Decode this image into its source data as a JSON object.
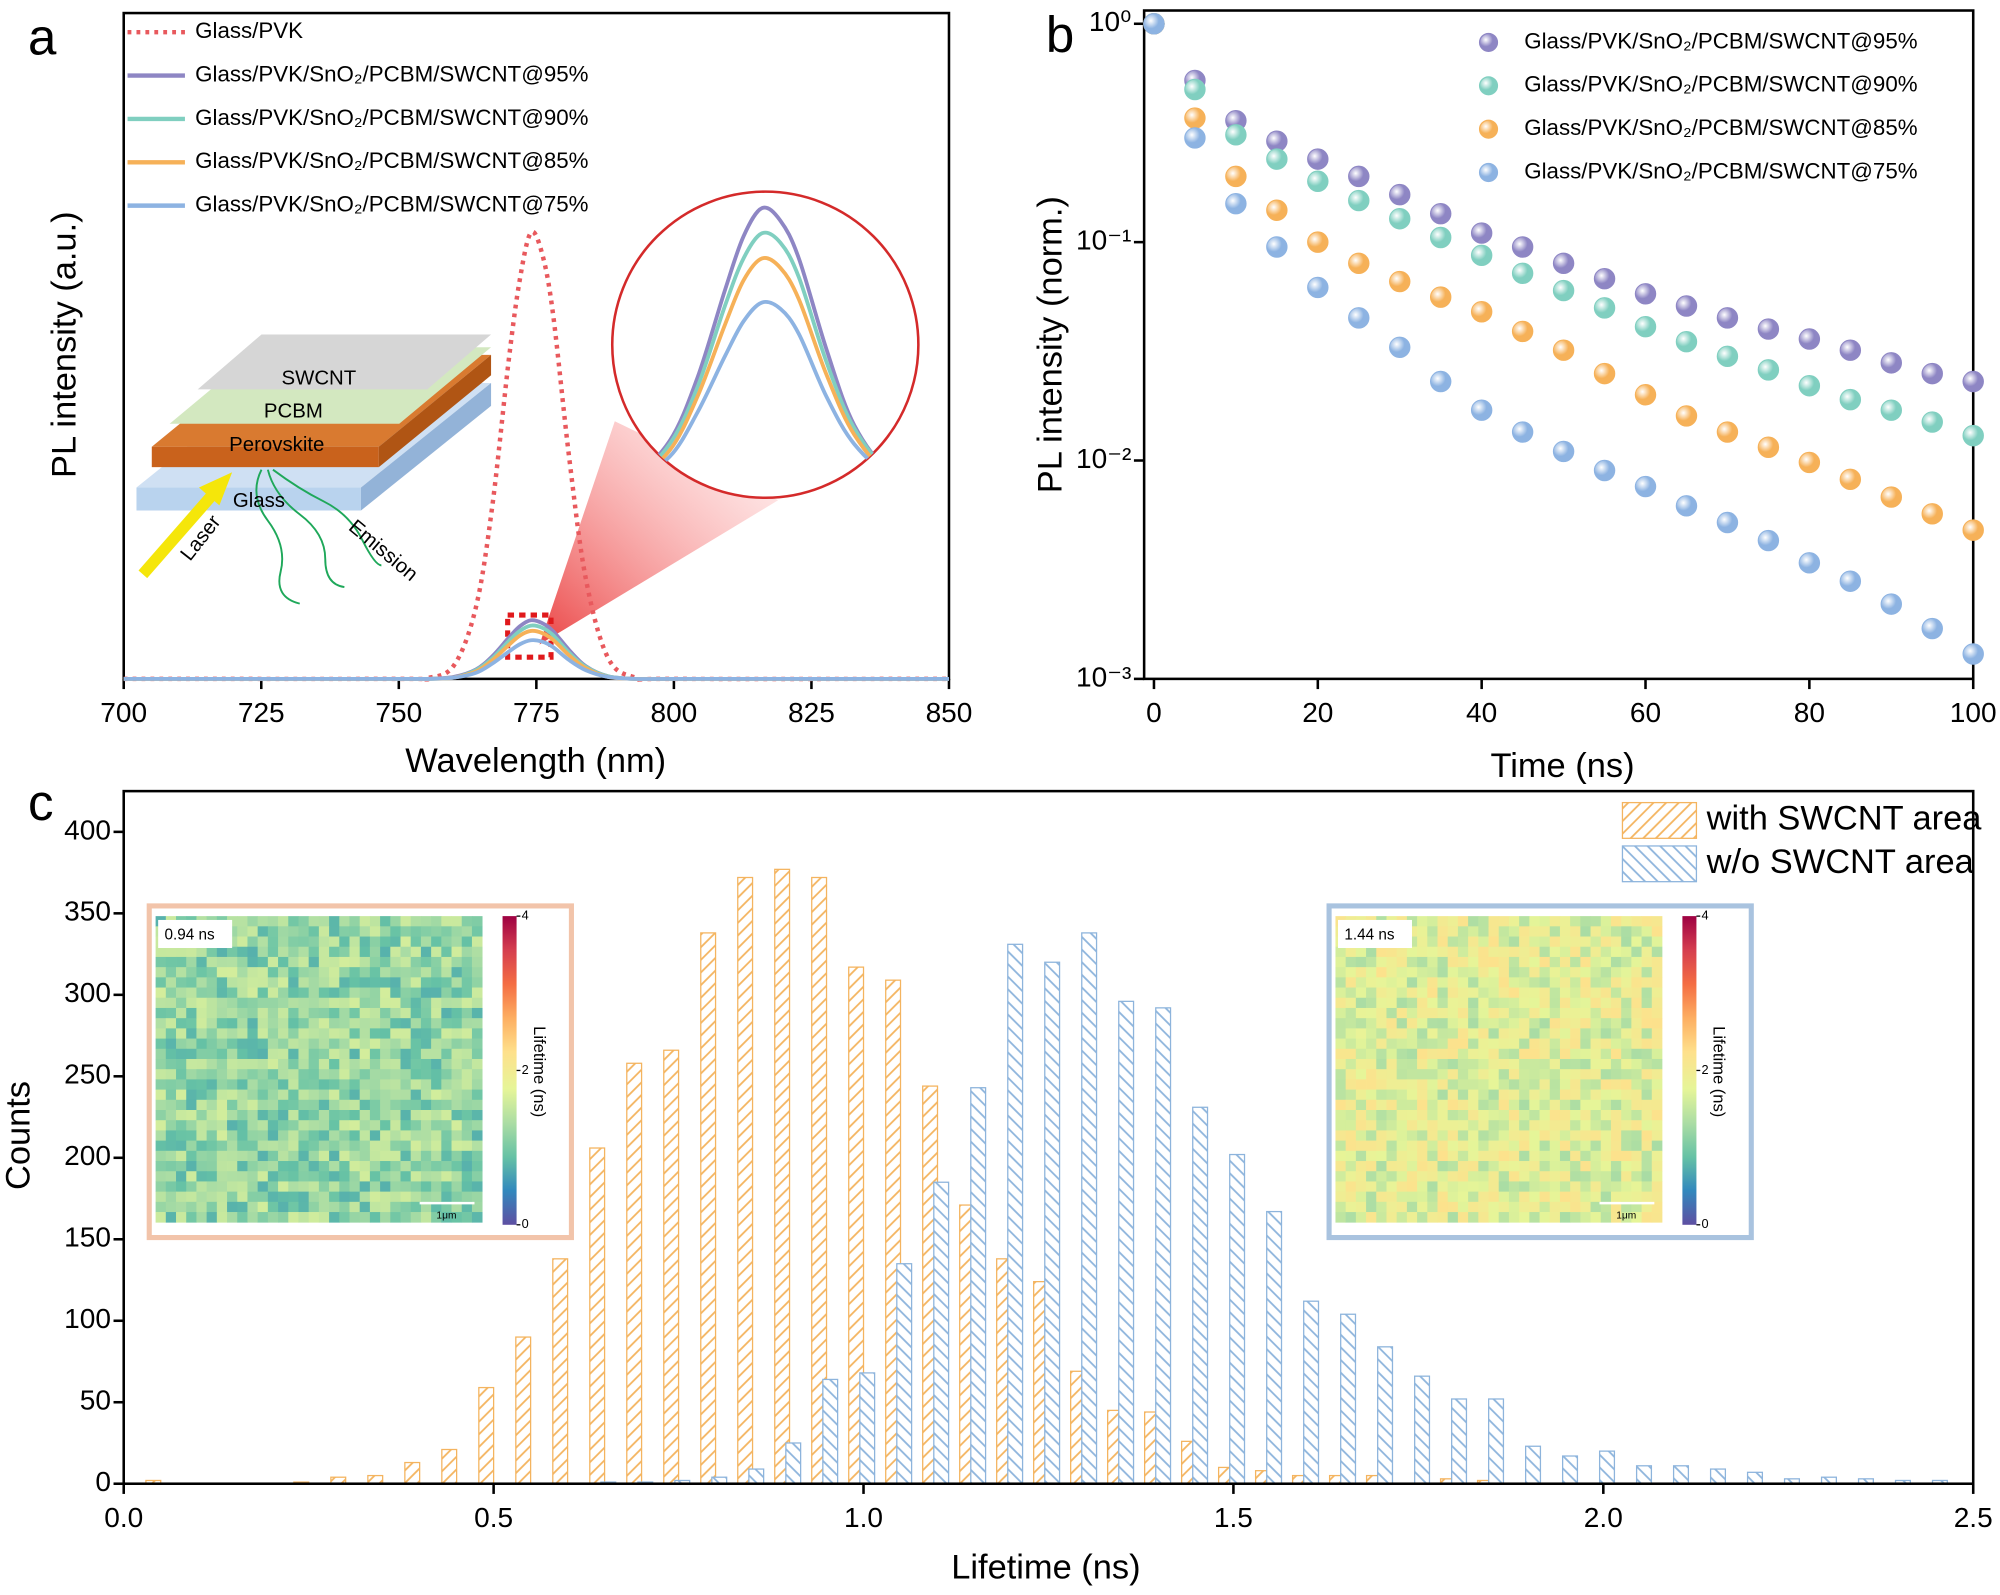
{
  "chart_data": [
    {
      "type": "line",
      "panel_label": "a",
      "xlabel": "Wavelength (nm)",
      "ylabel": "PL intensity (a.u.)",
      "xlim": [
        700,
        850
      ],
      "ylim": [
        0,
        1
      ],
      "xticks": [
        700,
        725,
        750,
        775,
        800,
        825,
        850
      ],
      "legend": "upper left",
      "x": [
        700,
        750,
        755,
        760,
        764,
        767,
        770,
        772,
        774,
        776,
        778,
        781,
        784,
        788,
        793,
        800,
        850
      ],
      "series": [
        {
          "name": "Glass/PVK",
          "color": "#e8595d",
          "dash": "dotted",
          "values": [
            0,
            0,
            0.001,
            0.02,
            0.107,
            0.26,
            0.48,
            0.6,
            0.67,
            0.64,
            0.55,
            0.33,
            0.15,
            0.032,
            0.002,
            0,
            0
          ]
        },
        {
          "name": "Glass/PVK/SnO₂/PCBM/SWCNT@95%",
          "color": "#8e86c4",
          "values": [
            0,
            0,
            0,
            0.003,
            0.014,
            0.034,
            0.062,
            0.079,
            0.088,
            0.084,
            0.072,
            0.043,
            0.019,
            0.004,
            0,
            0,
            0
          ]
        },
        {
          "name": "Glass/PVK/SnO₂/PCBM/SWCNT@90%",
          "color": "#80cfc0",
          "values": [
            0,
            0,
            0,
            0.002,
            0.013,
            0.031,
            0.057,
            0.072,
            0.08,
            0.077,
            0.066,
            0.039,
            0.018,
            0.004,
            0,
            0,
            0
          ]
        },
        {
          "name": "Glass/PVK/SnO₂/PCBM/SWCNT@85%",
          "color": "#f6b158",
          "values": [
            0,
            0,
            0,
            0.002,
            0.011,
            0.028,
            0.051,
            0.065,
            0.072,
            0.069,
            0.059,
            0.035,
            0.016,
            0.003,
            0,
            0,
            0
          ]
        },
        {
          "name": "Glass/PVK/SnO₂/PCBM/SWCNT@75%",
          "color": "#8db3e2",
          "values": [
            0,
            0,
            0,
            0.002,
            0.009,
            0.023,
            0.041,
            0.052,
            0.058,
            0.056,
            0.048,
            0.028,
            0.013,
            0.003,
            0,
            0,
            0
          ]
        }
      ],
      "inset_labels": [
        "SWCNT",
        "PCBM",
        "Perovskite",
        "Glass",
        "Laser",
        "Emission"
      ]
    },
    {
      "type": "scatter",
      "panel_label": "b",
      "xlabel": "Time (ns)",
      "ylabel": "PL intensity (norm.)",
      "log_y": true,
      "xlim": [
        -1.2,
        100
      ],
      "ylim": [
        0.001,
        1.15
      ],
      "xticks": [
        0,
        20,
        40,
        60,
        80,
        100
      ],
      "yticks": [
        {
          "value": 1,
          "label": "10⁰"
        },
        {
          "value": 0.1,
          "label": "10⁻¹"
        },
        {
          "value": 0.01,
          "label": "10⁻²"
        },
        {
          "value": 0.001,
          "label": "10⁻³"
        }
      ],
      "legend": "upper right",
      "x": [
        0,
        5,
        10,
        15,
        20,
        25,
        30,
        35,
        40,
        45,
        50,
        55,
        60,
        65,
        70,
        75,
        80,
        85,
        90,
        95,
        100
      ],
      "series": [
        {
          "name": "Glass/PVK/SnO₂/PCBM/SWCNT@95%",
          "color": "#8e86c4",
          "values": [
            1,
            0.55,
            0.36,
            0.29,
            0.24,
            0.2,
            0.165,
            0.135,
            0.11,
            0.095,
            0.08,
            0.068,
            0.058,
            0.051,
            0.045,
            0.04,
            0.036,
            0.032,
            0.028,
            0.025,
            0.023
          ]
        },
        {
          "name": "Glass/PVK/SnO₂/PCBM/SWCNT@90%",
          "color": "#80cfc0",
          "values": [
            1,
            0.5,
            0.31,
            0.24,
            0.19,
            0.155,
            0.128,
            0.105,
            0.087,
            0.072,
            0.06,
            0.05,
            0.041,
            0.035,
            0.03,
            0.026,
            0.022,
            0.019,
            0.017,
            0.015,
            0.013
          ]
        },
        {
          "name": "Glass/PVK/SnO₂/PCBM/SWCNT@85%",
          "color": "#f6b158",
          "values": [
            1,
            0.37,
            0.2,
            0.14,
            0.1,
            0.08,
            0.066,
            0.056,
            0.048,
            0.039,
            0.032,
            0.025,
            0.02,
            0.016,
            0.0135,
            0.0115,
            0.0098,
            0.0082,
            0.0068,
            0.0057,
            0.0048
          ]
        },
        {
          "name": "Glass/PVK/SnO₂/PCBM/SWCNT@75%",
          "color": "#8db3e2",
          "values": [
            1,
            0.3,
            0.15,
            0.095,
            0.062,
            0.045,
            0.033,
            0.023,
            0.017,
            0.0135,
            0.011,
            0.009,
            0.0076,
            0.0062,
            0.0052,
            0.0043,
            0.0034,
            0.0028,
            0.0022,
            0.0017,
            0.0013
          ]
        }
      ]
    },
    {
      "type": "histogram",
      "panel_label": "c",
      "xlabel": "Lifetime (ns)",
      "ylabel": "Counts",
      "xlim": [
        0,
        2.5
      ],
      "ylim": [
        0,
        425
      ],
      "xticks": [
        {
          "value": 0,
          "label": "0.0"
        },
        0.5,
        {
          "value": 1,
          "label": "1.0"
        },
        1.5,
        {
          "value": 2,
          "label": "2.0"
        },
        2.5
      ],
      "yticks": [
        0,
        50,
        100,
        150,
        200,
        250,
        300,
        350,
        400
      ],
      "legend": "upper right",
      "bins": [
        0.02,
        0.07,
        0.12,
        0.17,
        0.22,
        0.27,
        0.32,
        0.37,
        0.42,
        0.47,
        0.52,
        0.57,
        0.62,
        0.67,
        0.72,
        0.77,
        0.82,
        0.87,
        0.92,
        0.97,
        1.02,
        1.07,
        1.12,
        1.17,
        1.22,
        1.27,
        1.32,
        1.37,
        1.42,
        1.47,
        1.52,
        1.57,
        1.62,
        1.67,
        1.72,
        1.77,
        1.82,
        1.87,
        1.92,
        1.97,
        2.02,
        2.07,
        2.12,
        2.17,
        2.22,
        2.27,
        2.32,
        2.37,
        2.42,
        2.47,
        2.52
      ],
      "series": [
        {
          "name": "with SWCNT area",
          "color": "#f4b45f",
          "hatch": "/",
          "values": [
            2,
            0,
            0,
            0,
            1,
            4,
            5,
            13,
            21,
            59,
            90,
            138,
            206,
            258,
            266,
            338,
            372,
            377,
            372,
            317,
            309,
            244,
            171,
            138,
            124,
            69,
            45,
            44,
            26,
            10,
            8,
            5,
            5,
            5,
            0,
            3,
            2,
            0,
            0,
            0,
            0,
            0,
            0,
            0,
            0,
            0,
            0,
            0,
            0,
            0
          ]
        },
        {
          "name": "w/o SWCNT area",
          "color": "#8db4dc",
          "hatch": "\\",
          "values": [
            0,
            0,
            0,
            0,
            0,
            0,
            0,
            0,
            0,
            0,
            0,
            0,
            1,
            1,
            2,
            4,
            9,
            25,
            64,
            68,
            135,
            185,
            243,
            331,
            320,
            338,
            296,
            292,
            231,
            202,
            167,
            112,
            104,
            84,
            66,
            52,
            52,
            23,
            17,
            20,
            11,
            11,
            9,
            7,
            3,
            4,
            3,
            2,
            2,
            0
          ]
        }
      ],
      "insets": [
        {
          "label": "0.94 ns",
          "colorbar_label": "Lifetime (ns)",
          "colorbar_ticks": [
            0,
            2,
            4
          ],
          "scale_bar": "1μm",
          "border": "#f2c4aa"
        },
        {
          "label": "1.44 ns",
          "colorbar_label": "Lifetime (ns)",
          "colorbar_ticks": [
            0,
            2,
            4
          ],
          "scale_bar": "1μm",
          "border": "#a9c3df"
        }
      ]
    }
  ]
}
